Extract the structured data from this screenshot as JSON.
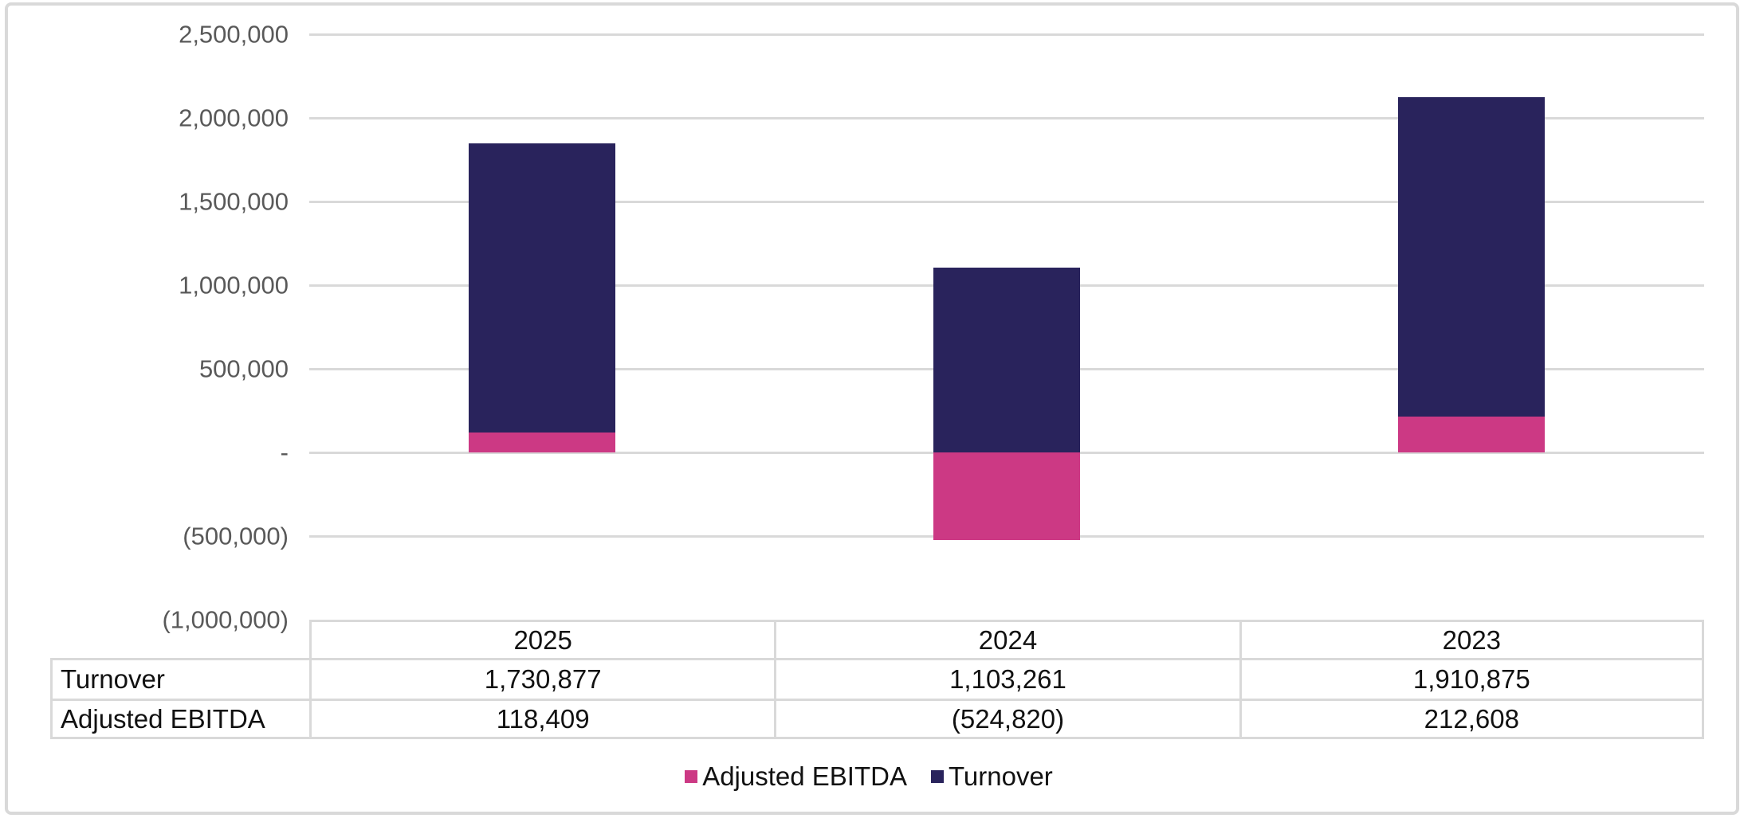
{
  "chart_data": {
    "type": "bar",
    "stacked": true,
    "orientation": "vertical",
    "categories": [
      "2025",
      "2024",
      "2023"
    ],
    "series": [
      {
        "name": "Adjusted EBITDA",
        "color": "#CC3984",
        "values": [
          118409,
          -524820,
          212608
        ]
      },
      {
        "name": "Turnover",
        "color": "#29235C",
        "values": [
          1730877,
          1103261,
          1910875
        ]
      }
    ],
    "title": "",
    "xlabel": "",
    "ylabel": "",
    "y_axis": {
      "min": -1000000,
      "max": 2500000,
      "step": 500000,
      "tick_labels": [
        "2,500,000",
        "2,000,000",
        "1,500,000",
        "1,000,000",
        "500,000",
        "-",
        "(500,000)",
        "(1,000,000)"
      ]
    },
    "grid": true,
    "legend": {
      "position": "bottom",
      "entries": [
        {
          "label": "Adjusted EBITDA",
          "color": "#CC3984"
        },
        {
          "label": "Turnover",
          "color": "#29235C"
        }
      ]
    },
    "data_table": {
      "column_headers": [
        "2025",
        "2024",
        "2023"
      ],
      "rows": [
        {
          "label": "Turnover",
          "values": [
            "1,730,877",
            "1,103,261",
            "1,910,875"
          ]
        },
        {
          "label": "Adjusted EBITDA",
          "values": [
            "118,409",
            "(524,820)",
            "212,608"
          ]
        }
      ]
    },
    "colors": {
      "gridline": "#D9D9D9",
      "axis_label_text": "#595959",
      "table_border": "#D9D9D9",
      "table_text": "#111111",
      "card_border": "#D9D9D9",
      "background": "#FFFFFF"
    }
  }
}
